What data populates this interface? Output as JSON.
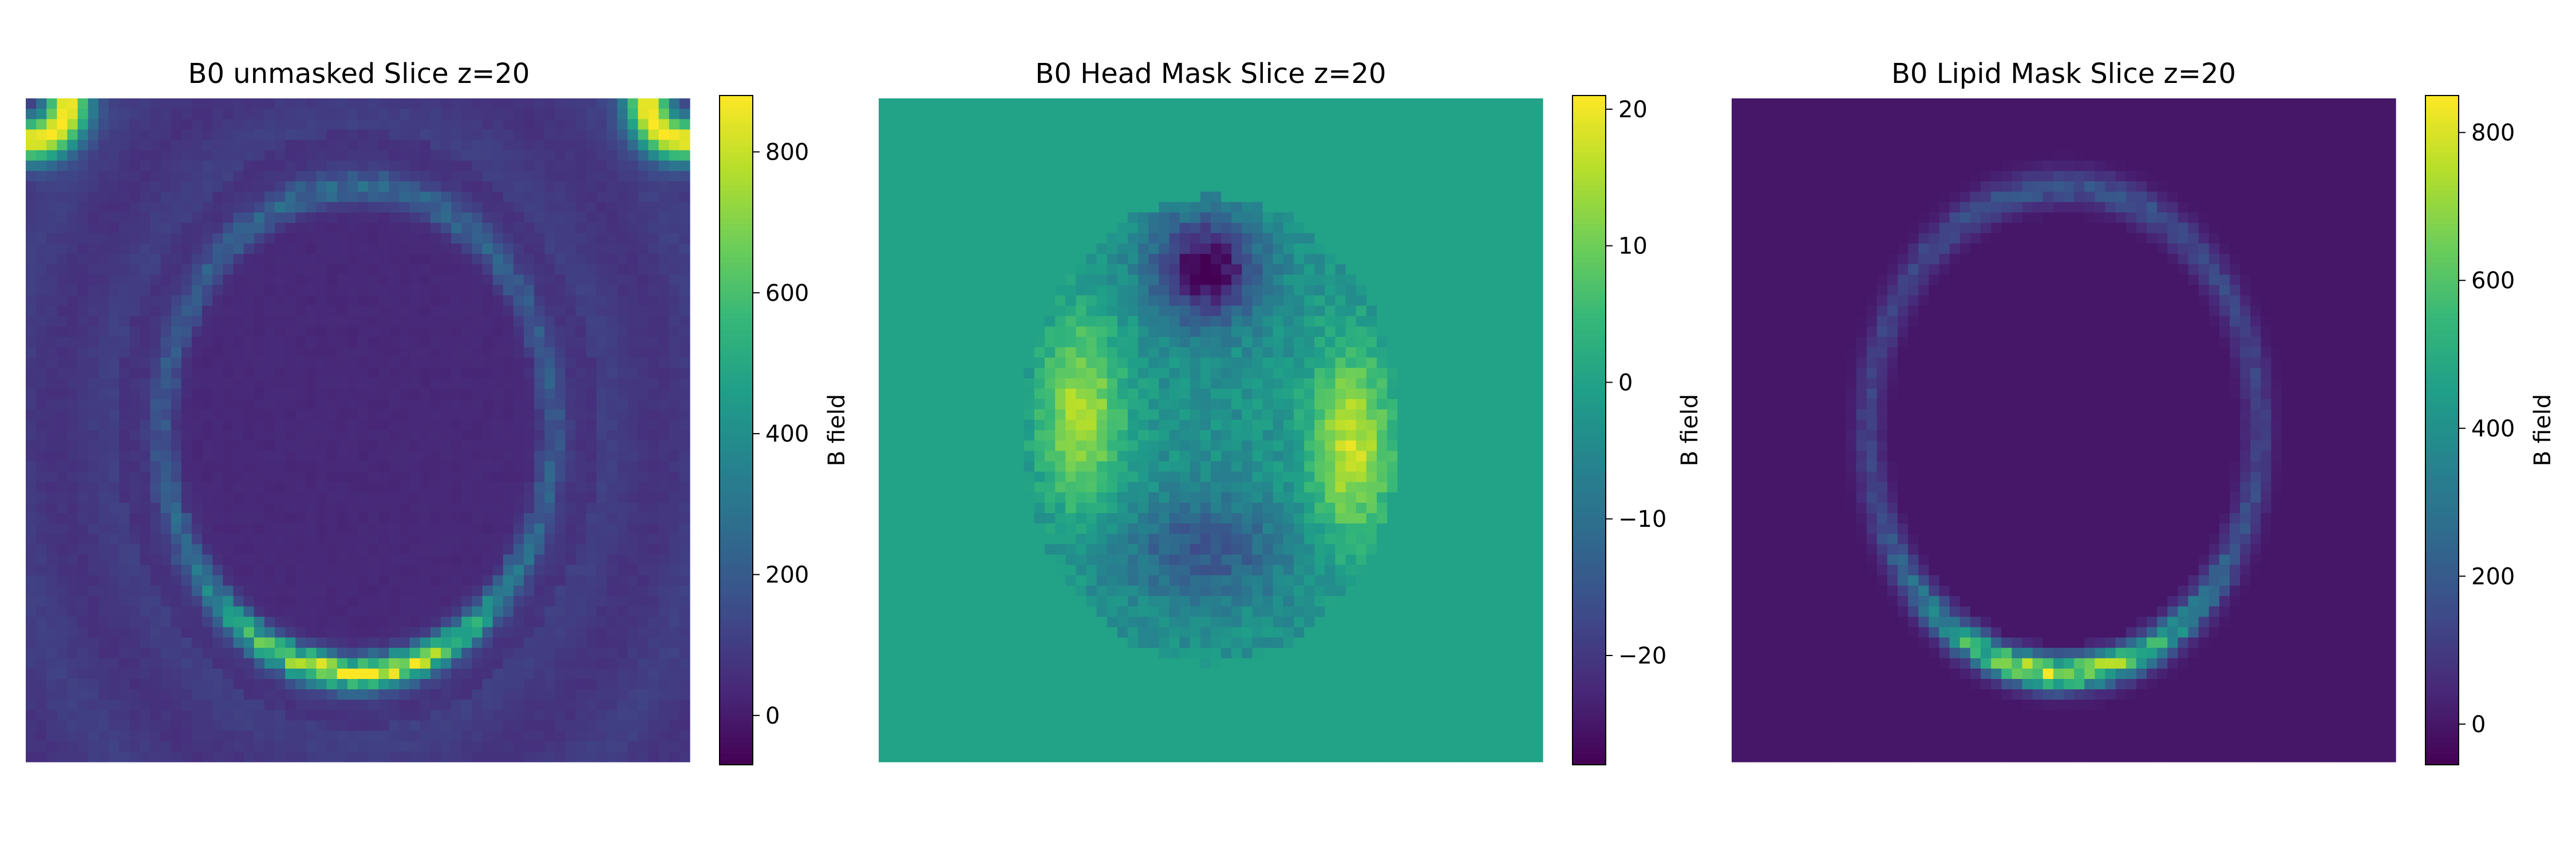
{
  "chart_data": [
    {
      "type": "heatmap",
      "title": "B0 unmasked Slice z=20",
      "grid": false,
      "colormap": "viridis",
      "colorbar": {
        "label": "B field",
        "range": [
          -70,
          880
        ],
        "ticks": [
          0,
          200,
          400,
          600,
          800
        ]
      },
      "values": {
        "background": 60,
        "head_interior": 35,
        "skull_band": 700,
        "corner_rings": 880,
        "outer_rings": 120
      }
    },
    {
      "type": "heatmap",
      "title": "B0 Head Mask Slice z=20",
      "grid": false,
      "colormap": "viridis",
      "colorbar": {
        "label": "B field",
        "range": [
          -28,
          21
        ],
        "ticks": [
          -20,
          -10,
          0,
          10,
          20
        ]
      },
      "values": {
        "background": 0,
        "frontal_min": -28,
        "lateral_max": 21,
        "interior_mean": -3
      }
    },
    {
      "type": "heatmap",
      "title": "B0 Lipid Mask Slice z=20",
      "grid": false,
      "colormap": "viridis",
      "colorbar": {
        "label": "B field",
        "range": [
          -55,
          850
        ],
        "ticks": [
          0,
          200,
          400,
          600,
          800
        ]
      },
      "values": {
        "background": 0,
        "skull_band": 700,
        "posterior_peak": 850
      }
    }
  ]
}
